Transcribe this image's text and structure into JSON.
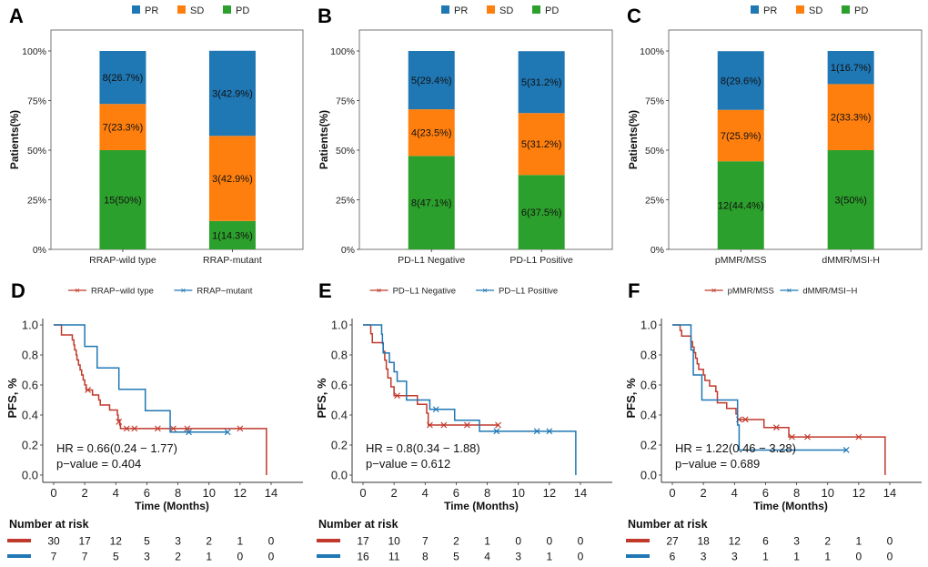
{
  "colors": {
    "PR": "#1f77b4",
    "SD": "#ff7f0e",
    "PD": "#2ca02c",
    "group1": "#c0392b",
    "group2": "#1f77b4"
  },
  "chart_data": [
    {
      "panel": "A",
      "type": "bar",
      "stacked": true,
      "legend": [
        "PR",
        "SD",
        "PD"
      ],
      "legend_position": "top",
      "ylabel": "Patients(%)",
      "xlabel": "",
      "yticks": [
        "0%",
        "25%",
        "50%",
        "75%",
        "100%"
      ],
      "ylim": [
        0,
        100
      ],
      "categories": [
        "RRAP-wild type",
        "RRAP-mutant"
      ],
      "series": [
        {
          "name": "PD",
          "values": [
            50,
            14.3
          ],
          "labels": [
            "15(50%)",
            "1(14.3%)"
          ]
        },
        {
          "name": "SD",
          "values": [
            23.3,
            42.9
          ],
          "labels": [
            "7(23.3%)",
            "3(42.9%)"
          ]
        },
        {
          "name": "PR",
          "values": [
            26.7,
            42.9
          ],
          "labels": [
            "8(26.7%)",
            "3(42.9%)"
          ]
        }
      ]
    },
    {
      "panel": "B",
      "type": "bar",
      "stacked": true,
      "legend": [
        "PR",
        "SD",
        "PD"
      ],
      "legend_position": "top",
      "ylabel": "Patients(%)",
      "xlabel": "",
      "yticks": [
        "0%",
        "25%",
        "50%",
        "75%",
        "100%"
      ],
      "ylim": [
        0,
        100
      ],
      "categories": [
        "PD-L1 Negative",
        "PD-L1 Positive"
      ],
      "series": [
        {
          "name": "PD",
          "values": [
            47.1,
            37.5
          ],
          "labels": [
            "8(47.1%)",
            "6(37.5%)"
          ]
        },
        {
          "name": "SD",
          "values": [
            23.5,
            31.2
          ],
          "labels": [
            "4(23.5%)",
            "5(31.2%)"
          ]
        },
        {
          "name": "PR",
          "values": [
            29.4,
            31.2
          ],
          "labels": [
            "5(29.4%)",
            "5(31.2%)"
          ]
        }
      ]
    },
    {
      "panel": "C",
      "type": "bar",
      "stacked": true,
      "legend": [
        "PR",
        "SD",
        "PD"
      ],
      "legend_position": "top",
      "ylabel": "Patients(%)",
      "xlabel": "",
      "yticks": [
        "0%",
        "25%",
        "50%",
        "75%",
        "100%"
      ],
      "ylim": [
        0,
        100
      ],
      "categories": [
        "pMMR/MSS",
        "dMMR/MSI-H"
      ],
      "series": [
        {
          "name": "PD",
          "values": [
            44.4,
            50
          ],
          "labels": [
            "12(44.4%)",
            "3(50%)"
          ]
        },
        {
          "name": "SD",
          "values": [
            25.9,
            33.3
          ],
          "labels": [
            "7(25.9%)",
            "2(33.3%)"
          ]
        },
        {
          "name": "PR",
          "values": [
            29.6,
            16.7
          ],
          "labels": [
            "8(29.6%)",
            "1(16.7%)"
          ]
        }
      ]
    },
    {
      "panel": "D",
      "type": "line",
      "step": true,
      "ylabel": "PFS, %",
      "xlabel": "Time (Months)",
      "xticks": [
        0,
        2,
        4,
        6,
        8,
        10,
        12,
        14
      ],
      "yticks": [
        "0.0",
        "0.2",
        "0.4",
        "0.6",
        "0.8",
        "1.0"
      ],
      "xlim": [
        0,
        15.5
      ],
      "ylim": [
        0,
        1
      ],
      "legend_position": "top",
      "annotation": [
        "HR = 0.66(0.24 − 1.77)",
        "p−value = 0.404"
      ],
      "risk_table_title": "Number at risk",
      "series": [
        {
          "name": "RRAP−wild type",
          "steps": [
            [
              0,
              1.0
            ],
            [
              0.5,
              0.933
            ],
            [
              1.2,
              0.9
            ],
            [
              1.3,
              0.867
            ],
            [
              1.35,
              0.833
            ],
            [
              1.45,
              0.8
            ],
            [
              1.5,
              0.767
            ],
            [
              1.6,
              0.733
            ],
            [
              1.7,
              0.7
            ],
            [
              1.8,
              0.667
            ],
            [
              1.9,
              0.633
            ],
            [
              2.0,
              0.6
            ],
            [
              2.1,
              0.567
            ],
            [
              2.5,
              0.533
            ],
            [
              2.9,
              0.5
            ],
            [
              3.0,
              0.467
            ],
            [
              3.6,
              0.433
            ],
            [
              4.1,
              0.4
            ],
            [
              4.15,
              0.367
            ],
            [
              4.25,
              0.333
            ],
            [
              4.3,
              0.31
            ],
            [
              13.7,
              0.0
            ]
          ],
          "censored": [
            [
              2.2,
              0.567
            ],
            [
              4.2,
              0.355
            ],
            [
              4.7,
              0.31
            ],
            [
              5.2,
              0.31
            ],
            [
              6.7,
              0.31
            ],
            [
              7.7,
              0.31
            ],
            [
              8.6,
              0.31
            ],
            [
              12.0,
              0.31
            ]
          ],
          "at_risk": [
            30,
            17,
            12,
            5,
            3,
            2,
            1,
            0
          ]
        },
        {
          "name": "RRAP−mutant",
          "steps": [
            [
              0,
              1.0
            ],
            [
              2.0,
              0.857
            ],
            [
              2.8,
              0.714
            ],
            [
              4.2,
              0.571
            ],
            [
              5.9,
              0.429
            ],
            [
              7.5,
              0.286
            ]
          ],
          "end": 11.2,
          "censored": [
            [
              8.7,
              0.286
            ],
            [
              11.2,
              0.286
            ]
          ],
          "at_risk": [
            7,
            7,
            5,
            3,
            2,
            1,
            0,
            0
          ]
        }
      ]
    },
    {
      "panel": "E",
      "type": "line",
      "step": true,
      "ylabel": "PFS, %",
      "xlabel": "Time (Months)",
      "xticks": [
        0,
        2,
        4,
        6,
        8,
        10,
        12,
        14
      ],
      "yticks": [
        "0.0",
        "0.2",
        "0.4",
        "0.6",
        "0.8",
        "1.0"
      ],
      "xlim": [
        0,
        15.5
      ],
      "ylim": [
        0,
        1
      ],
      "legend_position": "top",
      "annotation": [
        "HR = 0.8(0.34 − 1.88)",
        "p−value = 0.612"
      ],
      "risk_table_title": "Number at risk",
      "series": [
        {
          "name": "PD−L1 Negative",
          "steps": [
            [
              0,
              1.0
            ],
            [
              0.5,
              0.941
            ],
            [
              0.6,
              0.882
            ],
            [
              1.3,
              0.824
            ],
            [
              1.4,
              0.765
            ],
            [
              1.5,
              0.706
            ],
            [
              1.6,
              0.647
            ],
            [
              1.8,
              0.588
            ],
            [
              2.0,
              0.529
            ],
            [
              3.5,
              0.471
            ],
            [
              4.1,
              0.412
            ],
            [
              4.2,
              0.333
            ]
          ],
          "end": 8.7,
          "censored": [
            [
              2.2,
              0.529
            ],
            [
              4.3,
              0.333
            ],
            [
              5.2,
              0.333
            ],
            [
              6.7,
              0.333
            ],
            [
              8.7,
              0.333
            ]
          ],
          "at_risk": [
            17,
            10,
            7,
            2,
            1,
            0,
            0,
            0
          ]
        },
        {
          "name": "PD−L1 Positive",
          "steps": [
            [
              0,
              1.0
            ],
            [
              1.2,
              0.938
            ],
            [
              1.25,
              0.875
            ],
            [
              1.3,
              0.813
            ],
            [
              1.7,
              0.75
            ],
            [
              2.0,
              0.688
            ],
            [
              2.2,
              0.625
            ],
            [
              2.8,
              0.5
            ],
            [
              4.3,
              0.438
            ],
            [
              5.9,
              0.365
            ],
            [
              7.5,
              0.292
            ],
            [
              13.7,
              0.0
            ]
          ],
          "censored": [
            [
              4.7,
              0.438
            ],
            [
              8.6,
              0.292
            ],
            [
              11.2,
              0.292
            ],
            [
              12.0,
              0.292
            ]
          ],
          "at_risk": [
            16,
            11,
            8,
            5,
            4,
            3,
            1,
            0
          ]
        }
      ]
    },
    {
      "panel": "F",
      "type": "line",
      "step": true,
      "ylabel": "PFS, %",
      "xlabel": "Time (Months)",
      "xticks": [
        0,
        2,
        4,
        6,
        8,
        10,
        12,
        14
      ],
      "yticks": [
        "0.0",
        "0.2",
        "0.4",
        "0.6",
        "0.8",
        "1.0"
      ],
      "xlim": [
        0,
        15.5
      ],
      "ylim": [
        0,
        1
      ],
      "legend_position": "top",
      "annotation": [
        "HR = 1.22(0.46 − 3.28)",
        "p−value = 0.689"
      ],
      "risk_table_title": "Number at risk",
      "series": [
        {
          "name": "pMMR/MSS",
          "steps": [
            [
              0,
              1.0
            ],
            [
              0.5,
              0.963
            ],
            [
              0.6,
              0.926
            ],
            [
              1.2,
              0.889
            ],
            [
              1.3,
              0.852
            ],
            [
              1.4,
              0.815
            ],
            [
              1.5,
              0.778
            ],
            [
              1.6,
              0.741
            ],
            [
              1.7,
              0.704
            ],
            [
              2.0,
              0.667
            ],
            [
              2.1,
              0.63
            ],
            [
              2.4,
              0.593
            ],
            [
              2.8,
              0.556
            ],
            [
              2.9,
              0.481
            ],
            [
              3.5,
              0.444
            ],
            [
              4.1,
              0.407
            ],
            [
              4.2,
              0.37
            ],
            [
              5.9,
              0.317
            ],
            [
              7.5,
              0.254
            ],
            [
              13.7,
              0.0
            ]
          ],
          "censored": [
            [
              4.3,
              0.37
            ],
            [
              4.7,
              0.37
            ],
            [
              6.7,
              0.317
            ],
            [
              7.7,
              0.254
            ],
            [
              8.7,
              0.254
            ],
            [
              12.0,
              0.254
            ]
          ],
          "at_risk": [
            27,
            18,
            12,
            6,
            3,
            2,
            1,
            0
          ]
        },
        {
          "name": "dMMR/MSI−H",
          "steps": [
            [
              0,
              1.0
            ],
            [
              1.2,
              0.833
            ],
            [
              1.35,
              0.667
            ],
            [
              1.9,
              0.5
            ],
            [
              4.2,
              0.333
            ],
            [
              4.3,
              0.167
            ]
          ],
          "end": 11.2,
          "censored": [
            [
              11.2,
              0.167
            ]
          ],
          "at_risk": [
            6,
            3,
            3,
            1,
            1,
            1,
            0,
            0
          ]
        }
      ]
    }
  ]
}
